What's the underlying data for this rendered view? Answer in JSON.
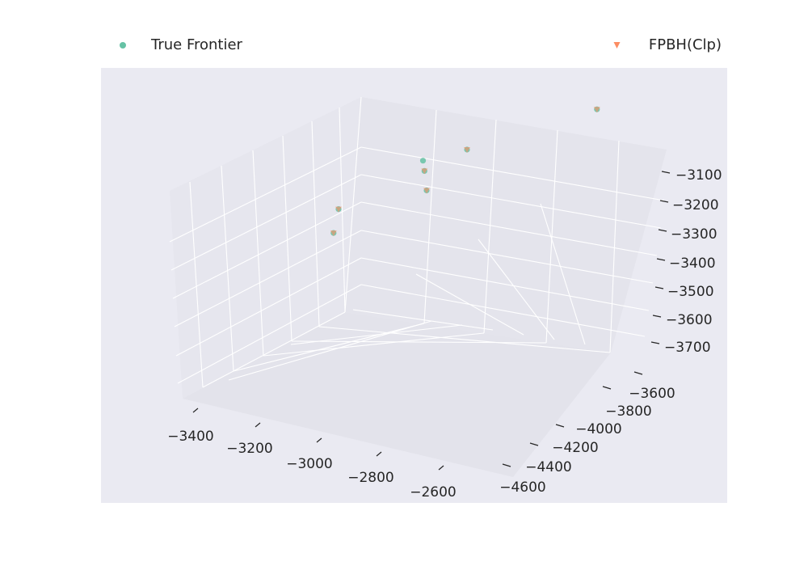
{
  "chart_data": {
    "type": "scatter3d",
    "title": "",
    "xlabel": "",
    "ylabel": "",
    "zlabel": "",
    "legend_position": "top",
    "grid": true,
    "xlim": [
      -3450,
      -2500
    ],
    "ylim": [
      -4700,
      -3500
    ],
    "zlim": [
      -3800,
      -3050
    ],
    "x_ticks": [
      "−3400",
      "−3200",
      "−3000",
      "−2800",
      "−2600"
    ],
    "x_tick_values": [
      -3400,
      -3200,
      -3000,
      -2800,
      -2600
    ],
    "y_ticks": [
      "−3600",
      "−3800",
      "−4000",
      "−4200",
      "−4400",
      "−4600"
    ],
    "y_tick_values": [
      -3600,
      -3800,
      -4000,
      -4200,
      -4400,
      -4600
    ],
    "z_ticks": [
      "−3100",
      "−3200",
      "−3300",
      "−3400",
      "−3500",
      "−3600",
      "−3700"
    ],
    "z_tick_values": [
      -3100,
      -3200,
      -3300,
      -3400,
      -3500,
      -3600,
      -3700
    ],
    "series": [
      {
        "name": "True Frontier",
        "marker": "circle",
        "color": "#66c2a5",
        "points": [
          {
            "x": -3300,
            "y": -4050,
            "z": -3290
          },
          {
            "x": -3050,
            "y": -3800,
            "z": -3240
          },
          {
            "x": -3220,
            "y": -4300,
            "z": -3280
          },
          {
            "x": -2980,
            "y": -4050,
            "z": -3380
          },
          {
            "x": -2720,
            "y": -3920,
            "z": -3350
          },
          {
            "x": -2620,
            "y": -3650,
            "z": -3300
          },
          {
            "x": -2720,
            "y": -4400,
            "z": -3500
          }
        ]
      },
      {
        "name": "FPBH(Clp)",
        "marker": "triangle-down",
        "color": "#fc8d62",
        "points": [
          {
            "x": -3300,
            "y": -4050,
            "z": -3290
          },
          {
            "x": -3050,
            "y": -3800,
            "z": -3240
          },
          {
            "x": -3220,
            "y": -4300,
            "z": -3280
          },
          {
            "x": -2980,
            "y": -4050,
            "z": -3380
          },
          {
            "x": -2720,
            "y": -3920,
            "z": -3350
          },
          {
            "x": -2720,
            "y": -4400,
            "z": -3500
          }
        ]
      }
    ]
  }
}
